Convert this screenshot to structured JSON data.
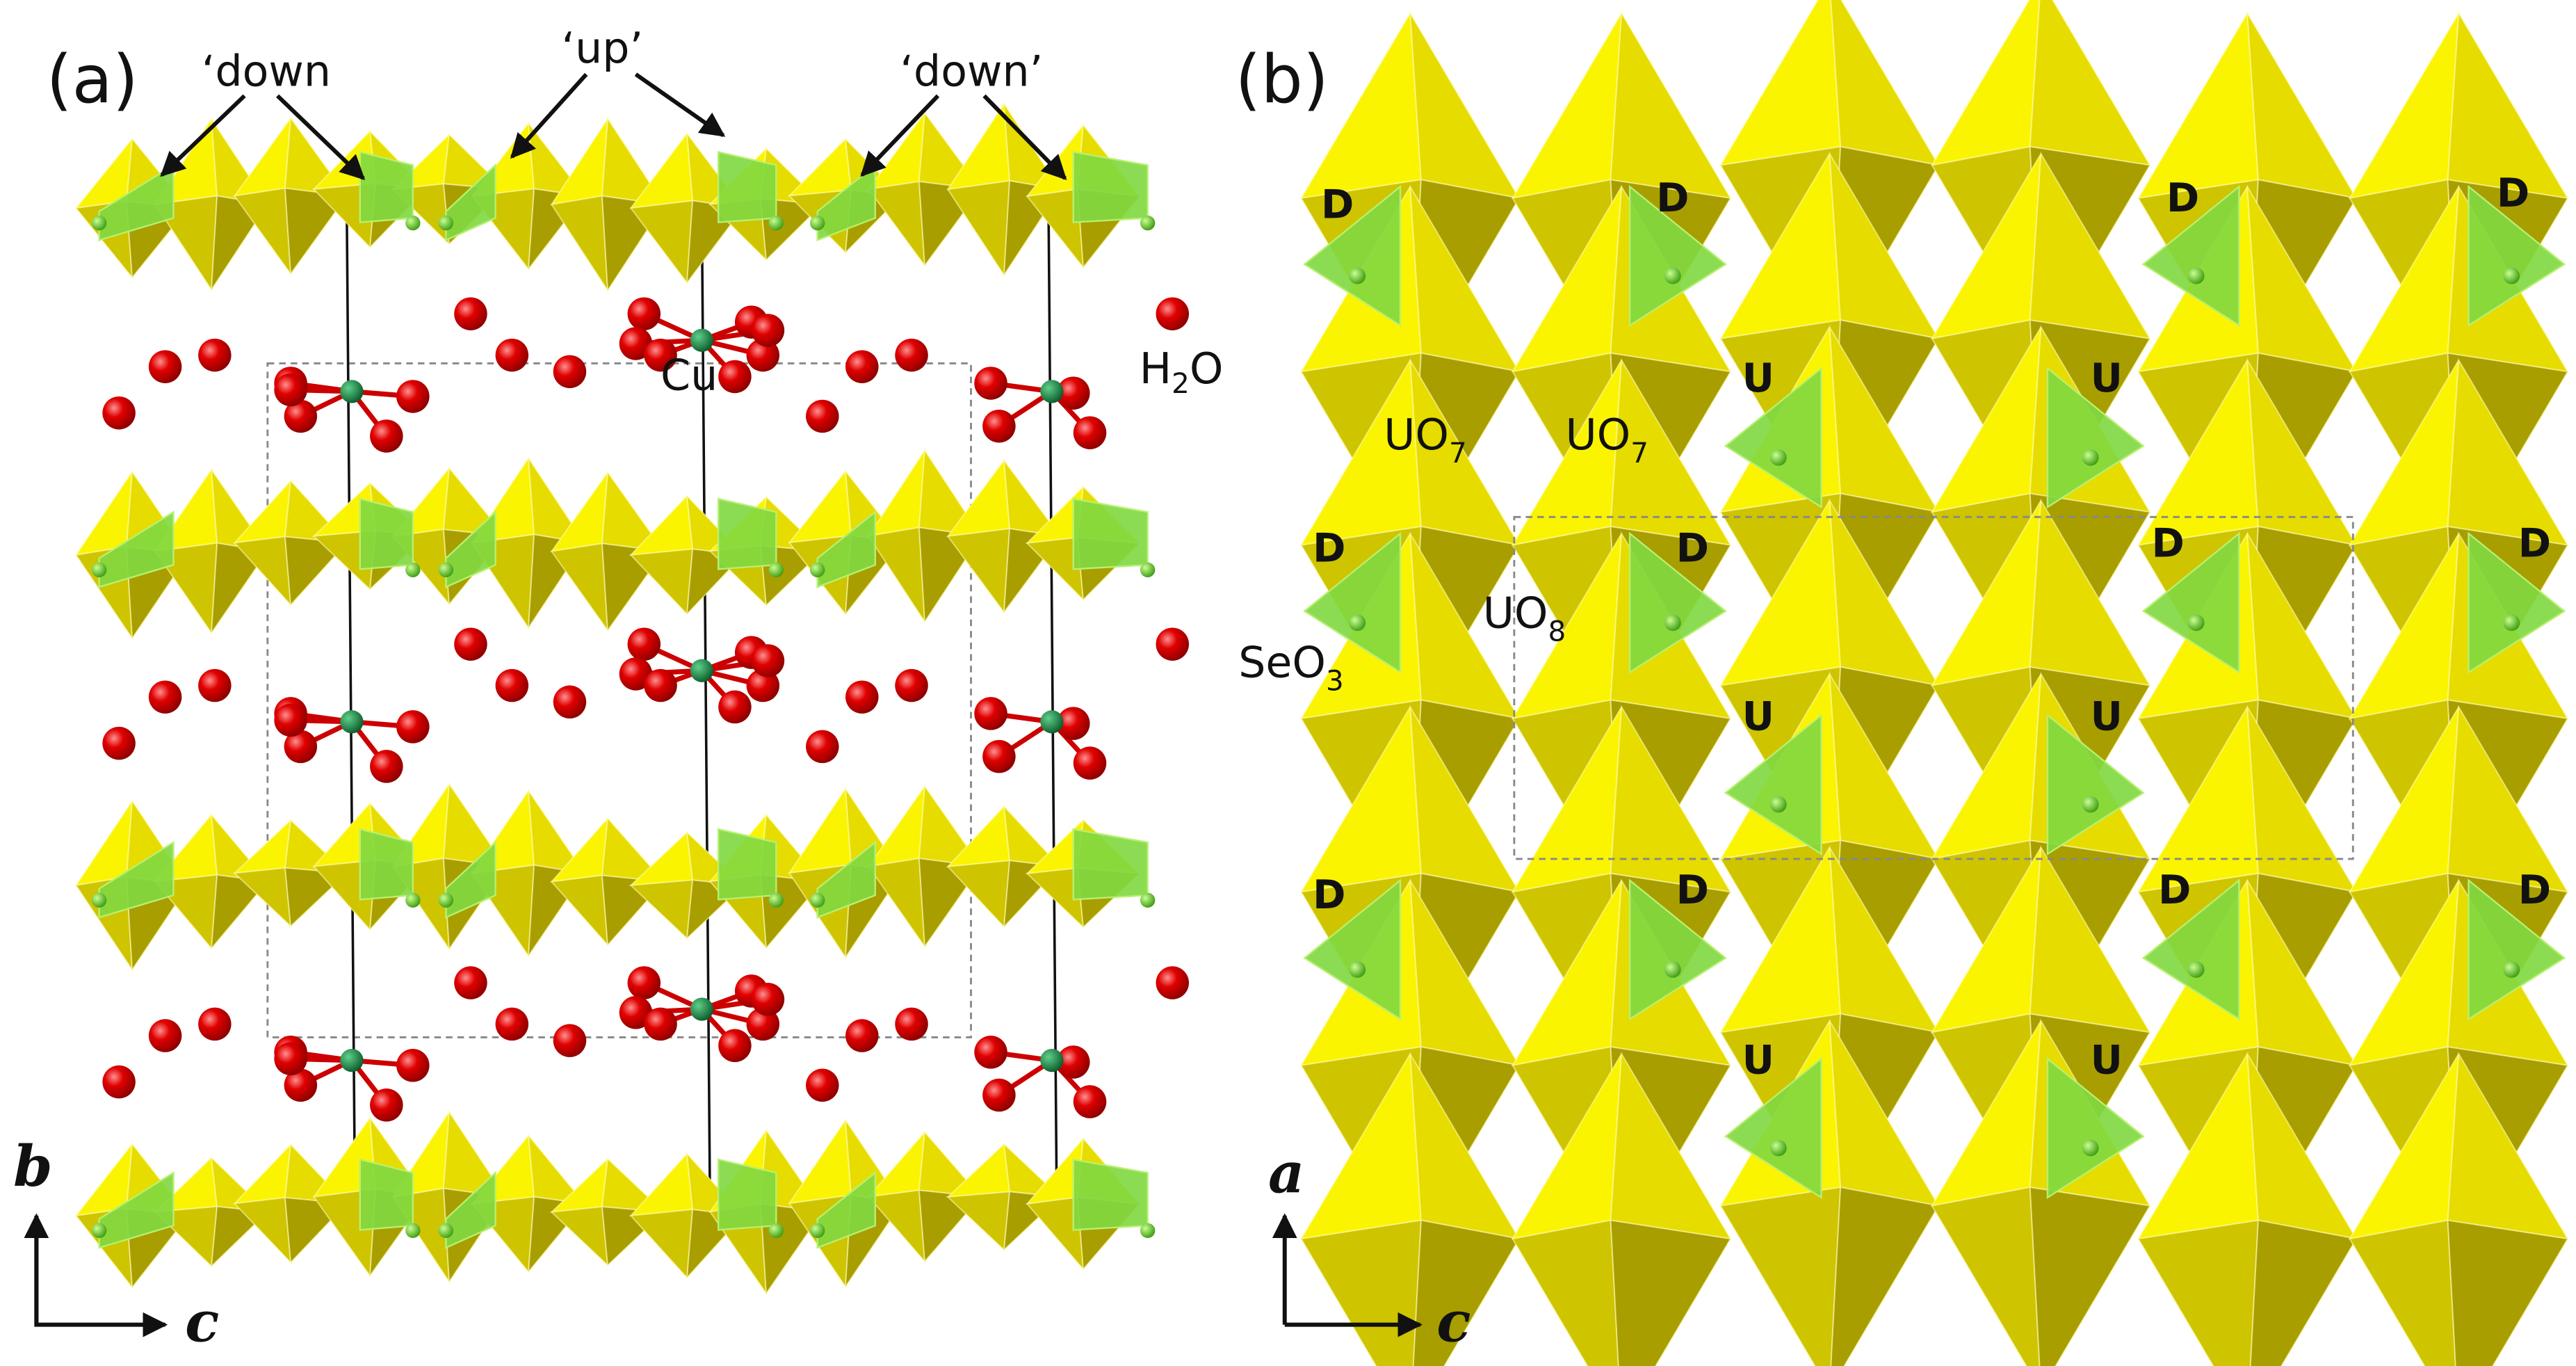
{
  "panel_a": {
    "label": "(a)",
    "annotations": [
      "‘down",
      "‘up’",
      "‘down’"
    ],
    "cu": "Cu",
    "h2o": {
      "main": "H",
      "sub": "2",
      "end": "O"
    },
    "axes": {
      "vertical": "b",
      "horizontal": "c"
    }
  },
  "panel_b": {
    "label": "(b)",
    "uo7": [
      {
        "main": "UO",
        "sub": "7"
      },
      {
        "main": "UO",
        "sub": "7"
      }
    ],
    "uo8": {
      "main": "UO",
      "sub": "8"
    },
    "seo3": {
      "main": "SeO",
      "sub": "3"
    },
    "d_labels": [
      "D",
      "D",
      "D",
      "D",
      "D",
      "D",
      "D",
      "D",
      "D",
      "D",
      "D",
      "D"
    ],
    "u_labels": [
      "U",
      "U",
      "U",
      "U",
      "U",
      "U"
    ],
    "axes": {
      "vertical": "a",
      "horizontal": "c"
    }
  }
}
